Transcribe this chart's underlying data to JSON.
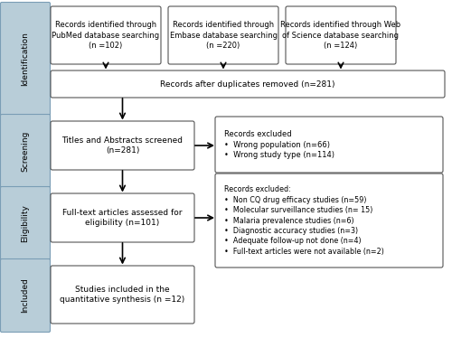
{
  "background_color": "#ffffff",
  "sidebar_color": "#b8cdd8",
  "box_fill_white": "#ffffff",
  "box_fill_gray": "#e8e8e8",
  "border_color": "#555555",
  "text_color": "#000000",
  "box1_text": "Records identified through\nPubMed database searching\n(n =102)",
  "box2_text": "Records identified through\nEmbase database searching\n(n =220)",
  "box3_text": "Records identified through Web\nof Science database searching\n(n =124)",
  "box4_text": "Records after duplicates removed (n=281)",
  "box5_text": "Titles and Abstracts screened\n(n=281)",
  "box6_text": "Records excluded\n•  Wrong population (n=66)\n•  Wrong study type (n=114)",
  "box7_text": "Full-text articles assessed for\neligibility (n=101)",
  "box8_text": "Records excluded:\n•  Non CQ drug efficacy studies (n=59)\n•  Molecular surveillance studies (n= 15)\n•  Malaria prevalence studies (n=6)\n•  Diagnostic accuracy studies (n=3)\n•  Adequate follow-up not done (n=4)\n•  Full-text articles were not available (n=2)",
  "box9_text": "Studies included in the\nquantitative synthesis (n =12)",
  "sidebar_labels": [
    "Identification",
    "Screening",
    "Eligibility",
    "Included"
  ]
}
